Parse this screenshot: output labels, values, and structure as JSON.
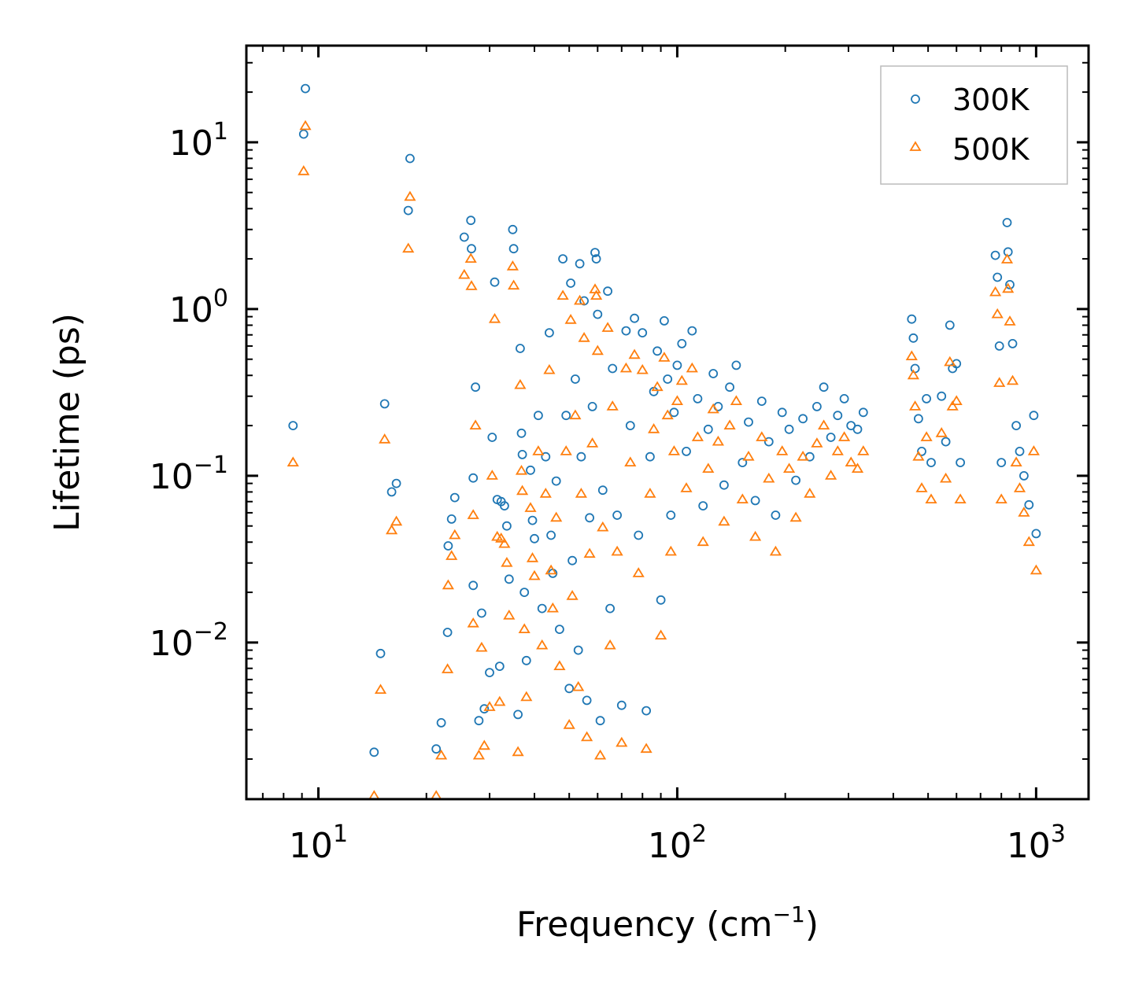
{
  "chart_data": {
    "type": "scatter",
    "title": "",
    "xlabel": {
      "base": "Frequency (cm",
      "sup": "−1",
      "end": ")"
    },
    "ylabel": "Lifetime (ps)",
    "xscale": "log",
    "yscale": "log",
    "xlim": [
      6.3,
      1400
    ],
    "ylim": [
      0.00115,
      38
    ],
    "x_ticks": [
      {
        "value": 10,
        "base": "10",
        "exp": "1"
      },
      {
        "value": 100,
        "base": "10",
        "exp": "2"
      },
      {
        "value": 1000,
        "base": "10",
        "exp": "3"
      }
    ],
    "y_ticks": [
      {
        "value": 10,
        "base": "10",
        "exp": "1"
      },
      {
        "value": 1,
        "base": "10",
        "exp": "0"
      },
      {
        "value": 0.1,
        "base": "10",
        "exp": "−1"
      },
      {
        "value": 0.01,
        "base": "10",
        "exp": "−2"
      }
    ],
    "legend_position": "top-right",
    "series": [
      {
        "name": "300K",
        "marker": "circle",
        "color": "#1f77b4",
        "points": [
          [
            8.5,
            0.2
          ],
          [
            9.2,
            21.0
          ],
          [
            9.1,
            11.2
          ],
          [
            14.3,
            0.0022
          ],
          [
            14.9,
            0.0086
          ],
          [
            15.3,
            0.27
          ],
          [
            16.0,
            0.08
          ],
          [
            16.5,
            0.09
          ],
          [
            17.8,
            3.9
          ],
          [
            18.0,
            8.0
          ],
          [
            21.3,
            0.0023
          ],
          [
            22.0,
            0.0033
          ],
          [
            22.9,
            0.0115
          ],
          [
            23.0,
            0.038
          ],
          [
            23.5,
            0.055
          ],
          [
            24.0,
            0.074
          ],
          [
            25.5,
            2.7
          ],
          [
            26.6,
            3.4
          ],
          [
            26.7,
            2.3
          ],
          [
            27.0,
            0.022
          ],
          [
            27.0,
            0.097
          ],
          [
            27.4,
            0.34
          ],
          [
            28.0,
            0.0034
          ],
          [
            28.5,
            0.015
          ],
          [
            29.0,
            0.004
          ],
          [
            30.0,
            0.0066
          ],
          [
            30.5,
            0.17
          ],
          [
            31.0,
            1.45
          ],
          [
            31.5,
            0.072
          ],
          [
            32.0,
            0.0072
          ],
          [
            32.3,
            0.07
          ],
          [
            33.0,
            0.066
          ],
          [
            33.5,
            0.05
          ],
          [
            34.0,
            0.024
          ],
          [
            34.8,
            3.0
          ],
          [
            35.0,
            2.3
          ],
          [
            36.0,
            0.0037
          ],
          [
            36.5,
            0.58
          ],
          [
            36.8,
            0.18
          ],
          [
            37.0,
            0.134
          ],
          [
            37.5,
            0.02
          ],
          [
            38.0,
            0.0078
          ],
          [
            39.0,
            0.108
          ],
          [
            39.5,
            0.054
          ],
          [
            40.0,
            0.042
          ],
          [
            41.0,
            0.23
          ],
          [
            42.0,
            0.016
          ],
          [
            43.0,
            0.13
          ],
          [
            44.0,
            0.72
          ],
          [
            44.5,
            0.044
          ],
          [
            45.0,
            0.026
          ],
          [
            46.0,
            0.093
          ],
          [
            47.0,
            0.012
          ],
          [
            48.0,
            2.0
          ],
          [
            49.0,
            0.23
          ],
          [
            50.0,
            0.0053
          ],
          [
            50.5,
            1.43
          ],
          [
            51.0,
            0.031
          ],
          [
            52.0,
            0.38
          ],
          [
            53.0,
            0.009
          ],
          [
            53.5,
            1.87
          ],
          [
            54.0,
            0.13
          ],
          [
            55.0,
            1.12
          ],
          [
            56.0,
            0.0045
          ],
          [
            57.0,
            0.056
          ],
          [
            58.0,
            0.26
          ],
          [
            59.0,
            2.18
          ],
          [
            59.5,
            2.0
          ],
          [
            60.0,
            0.93
          ],
          [
            61.0,
            0.0034
          ],
          [
            62.0,
            0.082
          ],
          [
            64.0,
            1.28
          ],
          [
            65.0,
            0.016
          ],
          [
            66.0,
            0.44
          ],
          [
            68.0,
            0.058
          ],
          [
            70.0,
            0.0042
          ],
          [
            72.0,
            0.74
          ],
          [
            74.0,
            0.2
          ],
          [
            76.0,
            0.88
          ],
          [
            78.0,
            0.044
          ],
          [
            80.0,
            0.72
          ],
          [
            82.0,
            0.0039
          ],
          [
            84.0,
            0.13
          ],
          [
            86.0,
            0.32
          ],
          [
            88.0,
            0.56
          ],
          [
            90.0,
            0.018
          ],
          [
            92.0,
            0.85
          ],
          [
            94.0,
            0.38
          ],
          [
            96.0,
            0.058
          ],
          [
            98.0,
            0.24
          ],
          [
            100.0,
            0.46
          ],
          [
            103.0,
            0.62
          ],
          [
            106.0,
            0.14
          ],
          [
            110.0,
            0.74
          ],
          [
            114.0,
            0.29
          ],
          [
            118.0,
            0.066
          ],
          [
            122.0,
            0.19
          ],
          [
            126.0,
            0.41
          ],
          [
            130.0,
            0.26
          ],
          [
            135.0,
            0.088
          ],
          [
            140.0,
            0.34
          ],
          [
            146.0,
            0.46
          ],
          [
            152.0,
            0.12
          ],
          [
            158.0,
            0.21
          ],
          [
            165.0,
            0.071
          ],
          [
            172.0,
            0.28
          ],
          [
            180.0,
            0.16
          ],
          [
            188.0,
            0.058
          ],
          [
            196.0,
            0.24
          ],
          [
            205.0,
            0.19
          ],
          [
            214.0,
            0.094
          ],
          [
            224.0,
            0.22
          ],
          [
            234.0,
            0.13
          ],
          [
            245.0,
            0.26
          ],
          [
            256.0,
            0.34
          ],
          [
            268.0,
            0.17
          ],
          [
            280.0,
            0.23
          ],
          [
            292.0,
            0.29
          ],
          [
            305.0,
            0.2
          ],
          [
            318.0,
            0.19
          ],
          [
            330.0,
            0.24
          ],
          [
            450.0,
            0.87
          ],
          [
            455.0,
            0.67
          ],
          [
            460.0,
            0.44
          ],
          [
            470.0,
            0.22
          ],
          [
            480.0,
            0.14
          ],
          [
            495.0,
            0.29
          ],
          [
            510.0,
            0.12
          ],
          [
            545.0,
            0.3
          ],
          [
            560.0,
            0.16
          ],
          [
            575.0,
            0.8
          ],
          [
            585.0,
            0.44
          ],
          [
            600.0,
            0.47
          ],
          [
            615.0,
            0.12
          ],
          [
            770.0,
            2.1
          ],
          [
            780.0,
            1.55
          ],
          [
            790.0,
            0.6
          ],
          [
            800.0,
            0.12
          ],
          [
            830.0,
            3.3
          ],
          [
            835.0,
            2.2
          ],
          [
            845.0,
            1.4
          ],
          [
            860.0,
            0.62
          ],
          [
            880.0,
            0.2
          ],
          [
            900.0,
            0.14
          ],
          [
            925.0,
            0.1
          ],
          [
            955.0,
            0.067
          ],
          [
            985.0,
            0.23
          ],
          [
            1000.0,
            0.045
          ]
        ]
      },
      {
        "name": "500K",
        "marker": "triangle",
        "color": "#ff7f0e",
        "points": [
          [
            8.5,
            0.12
          ],
          [
            9.2,
            12.5
          ],
          [
            9.1,
            6.7
          ],
          [
            14.3,
            0.0012
          ],
          [
            14.9,
            0.0052
          ],
          [
            15.3,
            0.165
          ],
          [
            16.0,
            0.047
          ],
          [
            16.5,
            0.053
          ],
          [
            17.8,
            2.3
          ],
          [
            18.0,
            4.7
          ],
          [
            21.3,
            0.0012
          ],
          [
            22.0,
            0.0021
          ],
          [
            22.9,
            0.0069
          ],
          [
            23.0,
            0.022
          ],
          [
            23.5,
            0.033
          ],
          [
            24.0,
            0.044
          ],
          [
            25.5,
            1.6
          ],
          [
            26.6,
            2.0
          ],
          [
            26.7,
            1.37
          ],
          [
            27.0,
            0.013
          ],
          [
            27.0,
            0.058
          ],
          [
            27.4,
            0.2
          ],
          [
            28.0,
            0.0021
          ],
          [
            28.5,
            0.0093
          ],
          [
            29.0,
            0.0024
          ],
          [
            30.0,
            0.0041
          ],
          [
            30.5,
            0.1
          ],
          [
            31.0,
            0.87
          ],
          [
            31.5,
            0.043
          ],
          [
            32.0,
            0.0044
          ],
          [
            32.3,
            0.042
          ],
          [
            33.0,
            0.039
          ],
          [
            33.5,
            0.03
          ],
          [
            34.0,
            0.0145
          ],
          [
            34.8,
            1.8
          ],
          [
            35.0,
            1.38
          ],
          [
            36.0,
            0.0022
          ],
          [
            36.5,
            0.35
          ],
          [
            36.8,
            0.107
          ],
          [
            37.0,
            0.081
          ],
          [
            37.5,
            0.012
          ],
          [
            38.0,
            0.0047
          ],
          [
            39.0,
            0.064
          ],
          [
            39.5,
            0.032
          ],
          [
            40.0,
            0.025
          ],
          [
            41.0,
            0.14
          ],
          [
            42.0,
            0.0096
          ],
          [
            43.0,
            0.078
          ],
          [
            44.0,
            0.43
          ],
          [
            44.5,
            0.027
          ],
          [
            45.0,
            0.016
          ],
          [
            46.0,
            0.056
          ],
          [
            47.0,
            0.0072
          ],
          [
            48.0,
            1.2
          ],
          [
            49.0,
            0.14
          ],
          [
            50.0,
            0.0032
          ],
          [
            50.5,
            0.86
          ],
          [
            51.0,
            0.019
          ],
          [
            52.0,
            0.23
          ],
          [
            53.0,
            0.0054
          ],
          [
            53.5,
            1.12
          ],
          [
            54.0,
            0.078
          ],
          [
            55.0,
            0.67
          ],
          [
            56.0,
            0.0027
          ],
          [
            57.0,
            0.034
          ],
          [
            58.0,
            0.156
          ],
          [
            59.0,
            1.31
          ],
          [
            59.5,
            1.2
          ],
          [
            60.0,
            0.56
          ],
          [
            61.0,
            0.0021
          ],
          [
            62.0,
            0.049
          ],
          [
            64.0,
            0.77
          ],
          [
            65.0,
            0.0096
          ],
          [
            66.0,
            0.26
          ],
          [
            68.0,
            0.035
          ],
          [
            70.0,
            0.0025
          ],
          [
            72.0,
            0.44
          ],
          [
            74.0,
            0.12
          ],
          [
            76.0,
            0.53
          ],
          [
            78.0,
            0.026
          ],
          [
            80.0,
            0.43
          ],
          [
            82.0,
            0.0023
          ],
          [
            84.0,
            0.078
          ],
          [
            86.0,
            0.19
          ],
          [
            88.0,
            0.34
          ],
          [
            90.0,
            0.011
          ],
          [
            92.0,
            0.51
          ],
          [
            94.0,
            0.23
          ],
          [
            96.0,
            0.035
          ],
          [
            98.0,
            0.14
          ],
          [
            100.0,
            0.28
          ],
          [
            103.0,
            0.37
          ],
          [
            106.0,
            0.084
          ],
          [
            110.0,
            0.44
          ],
          [
            114.0,
            0.17
          ],
          [
            118.0,
            0.04
          ],
          [
            122.0,
            0.11
          ],
          [
            126.0,
            0.25
          ],
          [
            130.0,
            0.16
          ],
          [
            135.0,
            0.053
          ],
          [
            140.0,
            0.2
          ],
          [
            146.0,
            0.28
          ],
          [
            152.0,
            0.072
          ],
          [
            158.0,
            0.13
          ],
          [
            165.0,
            0.043
          ],
          [
            172.0,
            0.17
          ],
          [
            180.0,
            0.096
          ],
          [
            188.0,
            0.035
          ],
          [
            196.0,
            0.14
          ],
          [
            205.0,
            0.11
          ],
          [
            214.0,
            0.056
          ],
          [
            224.0,
            0.13
          ],
          [
            234.0,
            0.078
          ],
          [
            245.0,
            0.156
          ],
          [
            256.0,
            0.2
          ],
          [
            268.0,
            0.1
          ],
          [
            280.0,
            0.14
          ],
          [
            292.0,
            0.17
          ],
          [
            305.0,
            0.12
          ],
          [
            318.0,
            0.11
          ],
          [
            330.0,
            0.14
          ],
          [
            450.0,
            0.52
          ],
          [
            455.0,
            0.4
          ],
          [
            460.0,
            0.26
          ],
          [
            470.0,
            0.13
          ],
          [
            480.0,
            0.084
          ],
          [
            495.0,
            0.17
          ],
          [
            510.0,
            0.072
          ],
          [
            545.0,
            0.18
          ],
          [
            560.0,
            0.096
          ],
          [
            575.0,
            0.48
          ],
          [
            585.0,
            0.26
          ],
          [
            600.0,
            0.28
          ],
          [
            615.0,
            0.072
          ],
          [
            770.0,
            1.26
          ],
          [
            780.0,
            0.93
          ],
          [
            790.0,
            0.36
          ],
          [
            800.0,
            0.072
          ],
          [
            830.0,
            1.98
          ],
          [
            835.0,
            1.32
          ],
          [
            845.0,
            0.84
          ],
          [
            860.0,
            0.37
          ],
          [
            880.0,
            0.12
          ],
          [
            900.0,
            0.084
          ],
          [
            925.0,
            0.06
          ],
          [
            955.0,
            0.04
          ],
          [
            985.0,
            0.14
          ],
          [
            1000.0,
            0.027
          ]
        ]
      }
    ]
  }
}
